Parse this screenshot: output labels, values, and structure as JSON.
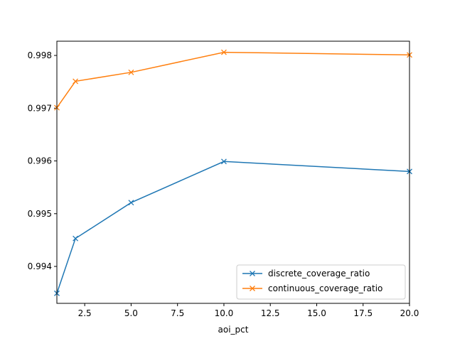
{
  "chart_data": {
    "type": "line",
    "x": [
      1,
      2,
      5,
      10,
      20
    ],
    "series": [
      {
        "name": "discrete_coverage_ratio",
        "values": [
          0.99349,
          0.99453,
          0.99521,
          0.99599,
          0.9958
        ],
        "color": "#1f77b4",
        "marker": "x"
      },
      {
        "name": "continuous_coverage_ratio",
        "values": [
          0.99701,
          0.99751,
          0.99768,
          0.99806,
          0.99801
        ],
        "color": "#ff7f0e",
        "marker": "x"
      }
    ],
    "xlabel": "aoi_pct",
    "ylabel": "",
    "xlim": [
      1,
      20
    ],
    "ylim": [
      0.9933,
      0.99827
    ],
    "xticks": [
      2.5,
      5.0,
      7.5,
      10.0,
      12.5,
      15.0,
      17.5,
      20.0
    ],
    "xtick_labels": [
      "2.5",
      "5.0",
      "7.5",
      "10.0",
      "12.5",
      "15.0",
      "17.5",
      "20.0"
    ],
    "yticks": [
      0.994,
      0.995,
      0.996,
      0.997,
      0.998
    ],
    "ytick_labels": [
      "0.994",
      "0.995",
      "0.996",
      "0.997",
      "0.998"
    ],
    "grid": false,
    "legend_position": "lower-right"
  }
}
